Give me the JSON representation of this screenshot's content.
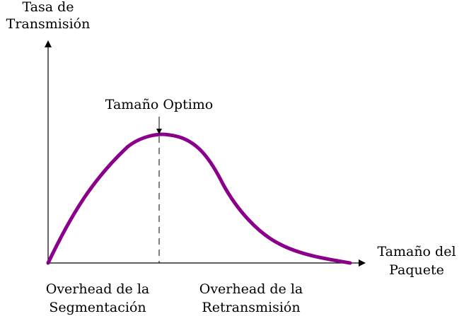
{
  "labels": {
    "y_axis_line1": "Tasa de",
    "y_axis_line2": "Transmisión",
    "x_axis_line1": "Tamaño del",
    "x_axis_line2": "Paquete",
    "peak": "Tamaño Optimo",
    "left_region_line1": "Overhead de la",
    "left_region_line2": "Segmentación",
    "right_region_line1": "Overhead de la",
    "right_region_line2": "Retransmisión"
  },
  "colors": {
    "curve": "#8b008b",
    "axes": "#000000"
  }
}
